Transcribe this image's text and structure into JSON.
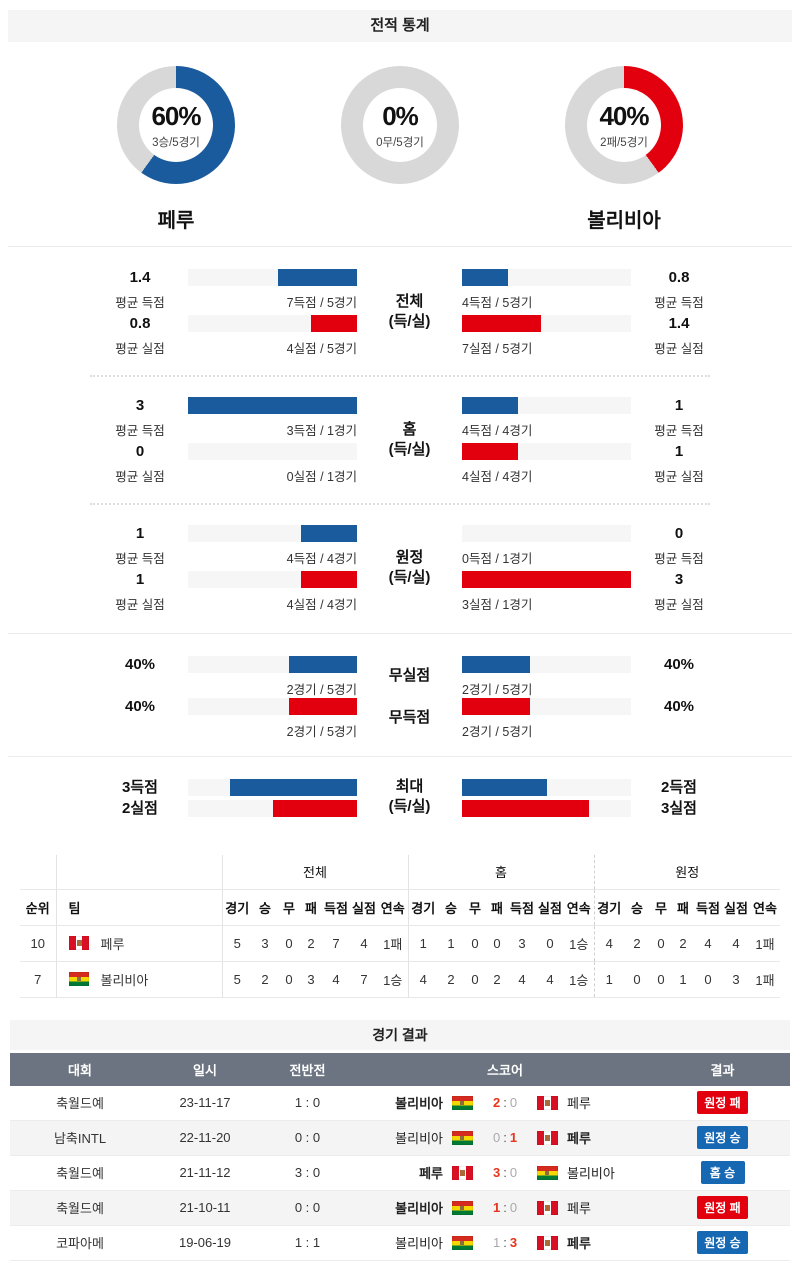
{
  "colors": {
    "blue": "#1a5b9e",
    "red": "#e2000f",
    "badge_blue": "#1668b3",
    "badge_red": "#e2000f",
    "score_win": "#e8341c",
    "score_lose": "#aaaaaa",
    "header_bg": "#6b7480",
    "donut_rest": "#d8d8d8"
  },
  "stats": {
    "title": "전적 통계",
    "donuts": [
      {
        "percent": "60%",
        "caption": "3승/5경기",
        "value": 60,
        "color": "blue"
      },
      {
        "percent": "0%",
        "caption": "0무/5경기",
        "value": 0,
        "color": "blue"
      },
      {
        "percent": "40%",
        "caption": "2패/5경기",
        "value": 40,
        "color": "red"
      }
    ],
    "team_left": "페루",
    "team_right": "볼리비아",
    "sections": [
      {
        "center": [
          "전체",
          "(득/실)"
        ],
        "rows": [
          {
            "left": {
              "value": "1.4",
              "sub": "평균 득점",
              "pct": 47,
              "color": "blue",
              "bar_label": "7득점 / 5경기"
            },
            "right": {
              "value": "0.8",
              "sub": "평균 득점",
              "pct": 27,
              "color": "blue",
              "bar_label": "4득점 / 5경기"
            }
          },
          {
            "left": {
              "value": "0.8",
              "sub": "평균 실점",
              "pct": 27,
              "color": "red",
              "bar_label": "4실점 / 5경기"
            },
            "right": {
              "value": "1.4",
              "sub": "평균 실점",
              "pct": 47,
              "color": "red",
              "bar_label": "7실점 / 5경기"
            }
          }
        ]
      },
      {
        "center": [
          "홈",
          "(득/실)"
        ],
        "rows": [
          {
            "left": {
              "value": "3",
              "sub": "평균 득점",
              "pct": 100,
              "color": "blue",
              "bar_label": "3득점 / 1경기"
            },
            "right": {
              "value": "1",
              "sub": "평균 득점",
              "pct": 33,
              "color": "blue",
              "bar_label": "4득점 / 4경기"
            }
          },
          {
            "left": {
              "value": "0",
              "sub": "평균 실점",
              "pct": 0,
              "color": "red",
              "bar_label": "0실점 / 1경기"
            },
            "right": {
              "value": "1",
              "sub": "평균 실점",
              "pct": 33,
              "color": "red",
              "bar_label": "4실점 / 4경기"
            }
          }
        ]
      },
      {
        "center": [
          "원정",
          "(득/실)"
        ],
        "rows": [
          {
            "left": {
              "value": "1",
              "sub": "평균 득점",
              "pct": 33,
              "color": "blue",
              "bar_label": "4득점 / 4경기"
            },
            "right": {
              "value": "0",
              "sub": "평균 득점",
              "pct": 0,
              "color": "blue",
              "bar_label": "0득점 / 1경기"
            }
          },
          {
            "left": {
              "value": "1",
              "sub": "평균 실점",
              "pct": 33,
              "color": "red",
              "bar_label": "4실점 / 4경기"
            },
            "right": {
              "value": "3",
              "sub": "평균 실점",
              "pct": 100,
              "color": "red",
              "bar_label": "3실점 / 1경기"
            }
          }
        ]
      },
      {
        "rows": [
          {
            "center": "무실점",
            "left": {
              "value": "40%",
              "pct": 40,
              "color": "blue",
              "bar_label": "2경기 / 5경기"
            },
            "right": {
              "value": "40%",
              "pct": 40,
              "color": "blue",
              "bar_label": "2경기 / 5경기"
            }
          },
          {
            "center": "무득점",
            "left": {
              "value": "40%",
              "pct": 40,
              "color": "red",
              "bar_label": "2경기 / 5경기"
            },
            "right": {
              "value": "40%",
              "pct": 40,
              "color": "red",
              "bar_label": "2경기 / 5경기"
            }
          }
        ]
      },
      {
        "center": [
          "최대",
          "(득/실)"
        ],
        "rows": [
          {
            "left": {
              "value": "3득점",
              "pct": 75,
              "color": "blue"
            },
            "right": {
              "value": "2득점",
              "pct": 50,
              "color": "blue"
            }
          },
          {
            "left": {
              "value": "2실점",
              "pct": 50,
              "color": "red"
            },
            "right": {
              "value": "3실점",
              "pct": 75,
              "color": "red"
            }
          }
        ]
      }
    ]
  },
  "standings": {
    "rank_header": "순위",
    "team_header": "팀",
    "group_headers": [
      "전체",
      "홈",
      "원정"
    ],
    "stat_cols": [
      "경기",
      "승",
      "무",
      "패",
      "득점",
      "실점",
      "연속"
    ],
    "rows": [
      {
        "rank": "10",
        "team": "페루",
        "flag": "peru",
        "overall": [
          "5",
          "3",
          "0",
          "2",
          "7",
          "4",
          "1패"
        ],
        "home": [
          "1",
          "1",
          "0",
          "0",
          "3",
          "0",
          "1승"
        ],
        "away": [
          "4",
          "2",
          "0",
          "2",
          "4",
          "4",
          "1패"
        ]
      },
      {
        "rank": "7",
        "team": "볼리비아",
        "flag": "bolivia",
        "overall": [
          "5",
          "2",
          "0",
          "3",
          "4",
          "7",
          "1승"
        ],
        "home": [
          "4",
          "2",
          "0",
          "2",
          "4",
          "4",
          "1승"
        ],
        "away": [
          "1",
          "0",
          "0",
          "1",
          "0",
          "3",
          "1패"
        ]
      }
    ]
  },
  "results": {
    "title": "경기 결과",
    "headers": {
      "league": "대회",
      "date": "일시",
      "first_half": "전반전",
      "score": "스코어",
      "result": "결과"
    },
    "rows": [
      {
        "league": "축월드예",
        "date": "23-11-17",
        "half": "1 : 0",
        "home": {
          "name": "볼리비아",
          "flag": "bolivia",
          "weight": "bold"
        },
        "score": {
          "home": "2",
          "away": "0",
          "home_class": "s-win",
          "away_class": "s-lose"
        },
        "away": {
          "name": "페루",
          "flag": "peru",
          "weight": ""
        },
        "result": {
          "label": "원정 패",
          "type": "lose"
        }
      },
      {
        "league": "남축INTL",
        "date": "22-11-20",
        "half": "0 : 0",
        "home": {
          "name": "볼리비아",
          "flag": "bolivia",
          "weight": ""
        },
        "score": {
          "home": "0",
          "away": "1",
          "home_class": "s-lose",
          "away_class": "s-win"
        },
        "away": {
          "name": "페루",
          "flag": "peru",
          "weight": "bold"
        },
        "result": {
          "label": "원정 승",
          "type": "win"
        }
      },
      {
        "league": "축월드예",
        "date": "21-11-12",
        "half": "3 : 0",
        "home": {
          "name": "페루",
          "flag": "peru",
          "weight": "bold"
        },
        "score": {
          "home": "3",
          "away": "0",
          "home_class": "s-win",
          "away_class": "s-lose"
        },
        "away": {
          "name": "볼리비아",
          "flag": "bolivia",
          "weight": ""
        },
        "result": {
          "label": "홈 승",
          "type": "win"
        }
      },
      {
        "league": "축월드예",
        "date": "21-10-11",
        "half": "0 : 0",
        "home": {
          "name": "볼리비아",
          "flag": "bolivia",
          "weight": "bold"
        },
        "score": {
          "home": "1",
          "away": "0",
          "home_class": "s-win",
          "away_class": "s-lose"
        },
        "away": {
          "name": "페루",
          "flag": "peru",
          "weight": ""
        },
        "result": {
          "label": "원정 패",
          "type": "lose"
        }
      },
      {
        "league": "코파아메",
        "date": "19-06-19",
        "half": "1 : 1",
        "home": {
          "name": "볼리비아",
          "flag": "bolivia",
          "weight": ""
        },
        "score": {
          "home": "1",
          "away": "3",
          "home_class": "s-lose",
          "away_class": "s-win"
        },
        "away": {
          "name": "페루",
          "flag": "peru",
          "weight": "bold"
        },
        "result": {
          "label": "원정 승",
          "type": "win"
        }
      }
    ]
  }
}
